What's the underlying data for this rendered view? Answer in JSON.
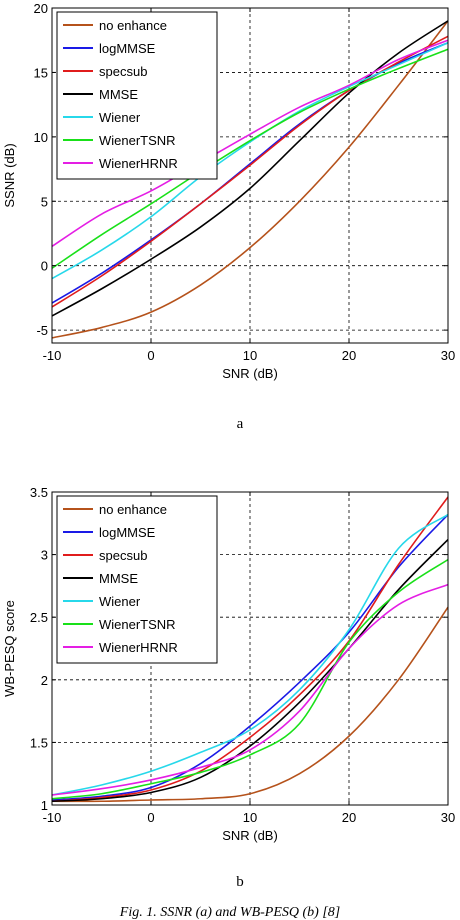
{
  "caption": "Fig. 1. SSNR (a) and WB-PESQ (b) [8]",
  "chart_data": [
    {
      "type": "line",
      "panel_label": "a",
      "xlabel": "SNR (dB)",
      "ylabel": "SSNR (dB)",
      "xlim": [
        -10,
        30
      ],
      "ylim": [
        -6,
        20
      ],
      "xticks": [
        -10,
        0,
        10,
        20,
        30
      ],
      "yticks": [
        -5,
        0,
        5,
        10,
        15,
        20
      ],
      "grid": true,
      "legend_position": "top-left",
      "x": [
        -10,
        -5,
        0,
        5,
        10,
        15,
        20,
        25,
        30
      ],
      "series": [
        {
          "name": "no enhance",
          "color": "#b5521b",
          "values": [
            -5.6,
            -4.8,
            -3.6,
            -1.5,
            1.4,
            5.0,
            9.2,
            14.0,
            19.0
          ]
        },
        {
          "name": "logMMSE",
          "color": "#1a1ae6",
          "values": [
            -2.9,
            -0.6,
            2.0,
            4.8,
            7.9,
            11.0,
            13.6,
            15.7,
            17.3
          ]
        },
        {
          "name": "specsub",
          "color": "#e01c1c",
          "values": [
            -3.2,
            -0.8,
            1.9,
            4.8,
            7.8,
            10.9,
            13.6,
            15.8,
            17.8
          ]
        },
        {
          "name": "MMSE",
          "color": "#000000",
          "values": [
            -3.9,
            -1.8,
            0.5,
            3.0,
            6.0,
            9.7,
            13.4,
            16.5,
            19.0
          ]
        },
        {
          "name": "Wiener",
          "color": "#27d8ea",
          "values": [
            -1.0,
            1.2,
            3.8,
            6.9,
            9.6,
            12.0,
            13.9,
            15.6,
            17.3
          ]
        },
        {
          "name": "WienerTSNR",
          "color": "#19e019",
          "values": [
            -0.2,
            2.4,
            4.8,
            7.3,
            9.7,
            11.9,
            13.7,
            15.3,
            16.8
          ]
        },
        {
          "name": "WienerHRNR",
          "color": "#e41ee4",
          "values": [
            1.5,
            4.0,
            5.8,
            8.0,
            10.2,
            12.3,
            14.0,
            16.0,
            17.5
          ]
        }
      ]
    },
    {
      "type": "line",
      "panel_label": "b",
      "xlabel": "SNR (dB)",
      "ylabel": "WB-PESQ score",
      "xlim": [
        -10,
        30
      ],
      "ylim": [
        1,
        3.5
      ],
      "xticks": [
        -10,
        0,
        10,
        20,
        30
      ],
      "yticks": [
        1,
        1.5,
        2,
        2.5,
        3,
        3.5
      ],
      "grid": true,
      "legend_position": "top-left",
      "x": [
        -10,
        -5,
        0,
        5,
        10,
        15,
        20,
        25,
        30
      ],
      "series": [
        {
          "name": "no enhance",
          "color": "#b5521b",
          "values": [
            1.03,
            1.03,
            1.04,
            1.05,
            1.09,
            1.25,
            1.55,
            2.0,
            2.58
          ]
        },
        {
          "name": "logMMSE",
          "color": "#1a1ae6",
          "values": [
            1.04,
            1.07,
            1.14,
            1.33,
            1.63,
            1.98,
            2.38,
            2.9,
            3.32
          ]
        },
        {
          "name": "specsub",
          "color": "#e01c1c",
          "values": [
            1.03,
            1.06,
            1.12,
            1.27,
            1.54,
            1.88,
            2.31,
            2.92,
            3.46
          ]
        },
        {
          "name": "MMSE",
          "color": "#000000",
          "values": [
            1.03,
            1.05,
            1.1,
            1.22,
            1.47,
            1.82,
            2.25,
            2.72,
            3.12
          ]
        },
        {
          "name": "Wiener",
          "color": "#27d8ea",
          "values": [
            1.08,
            1.16,
            1.27,
            1.42,
            1.6,
            1.92,
            2.4,
            3.05,
            3.32
          ]
        },
        {
          "name": "WienerTSNR",
          "color": "#19e019",
          "values": [
            1.05,
            1.09,
            1.17,
            1.26,
            1.4,
            1.65,
            2.3,
            2.7,
            2.96
          ]
        },
        {
          "name": "WienerHRNR",
          "color": "#e41ee4",
          "values": [
            1.08,
            1.13,
            1.2,
            1.3,
            1.44,
            1.75,
            2.25,
            2.6,
            2.76
          ]
        }
      ]
    }
  ]
}
